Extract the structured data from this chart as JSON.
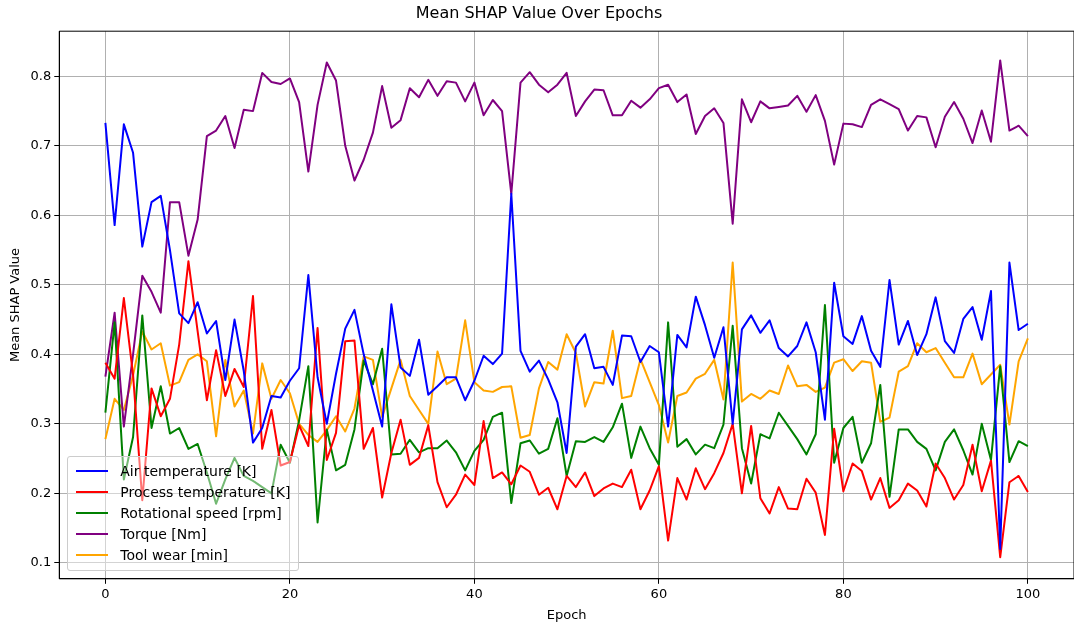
{
  "chart_data": {
    "type": "line",
    "title": "Mean SHAP Value Over Epochs",
    "xlabel": "Epoch",
    "ylabel": "Mean SHAP Value",
    "x": [
      0,
      1,
      2,
      3,
      4,
      5,
      6,
      7,
      8,
      9,
      10,
      11,
      12,
      13,
      14,
      15,
      16,
      17,
      18,
      19,
      20,
      21,
      22,
      23,
      24,
      25,
      26,
      27,
      28,
      29,
      30,
      31,
      32,
      33,
      34,
      35,
      36,
      37,
      38,
      39,
      40,
      41,
      42,
      43,
      44,
      45,
      46,
      47,
      48,
      49,
      50,
      51,
      52,
      53,
      54,
      55,
      56,
      57,
      58,
      59,
      60,
      61,
      62,
      63,
      64,
      65,
      66,
      67,
      68,
      69,
      70,
      71,
      72,
      73,
      74,
      75,
      76,
      77,
      78,
      79,
      80,
      81,
      82,
      83,
      84,
      85,
      86,
      87,
      88,
      89,
      90,
      91,
      92,
      93,
      94,
      95,
      96,
      97,
      98,
      99,
      100
    ],
    "xlim": [
      -5,
      105
    ],
    "xticks": [
      0,
      20,
      40,
      60,
      80,
      100
    ],
    "ylim": [
      0.077,
      0.865
    ],
    "yticks": [
      0.1,
      0.2,
      0.3,
      0.4,
      0.5,
      0.6,
      0.7,
      0.8
    ],
    "grid": true,
    "legend": "bottom left",
    "marker": "none",
    "line_style": "solid",
    "series": [
      {
        "name": "Air temperature [K]",
        "color": "#0000ff",
        "values": [
          0.733,
          0.586,
          0.731,
          0.69,
          0.555,
          0.619,
          0.628,
          0.55,
          0.459,
          0.445,
          0.475,
          0.43,
          0.448,
          0.363,
          0.45,
          0.376,
          0.273,
          0.294,
          0.34,
          0.338,
          0.362,
          0.38,
          0.514,
          0.367,
          0.3,
          0.372,
          0.437,
          0.464,
          0.4,
          0.348,
          0.296,
          0.472,
          0.381,
          0.369,
          0.421,
          0.342,
          0.354,
          0.367,
          0.367,
          0.334,
          0.362,
          0.398,
          0.386,
          0.401,
          0.631,
          0.405,
          0.375,
          0.391,
          0.364,
          0.331,
          0.258,
          0.411,
          0.429,
          0.38,
          0.382,
          0.356,
          0.427,
          0.426,
          0.389,
          0.412,
          0.403,
          0.296,
          0.428,
          0.41,
          0.483,
          0.442,
          0.395,
          0.439,
          0.3,
          0.436,
          0.456,
          0.431,
          0.449,
          0.409,
          0.397,
          0.412,
          0.446,
          0.403,
          0.306,
          0.503,
          0.426,
          0.415,
          0.455,
          0.405,
          0.382,
          0.507,
          0.414,
          0.448,
          0.399,
          0.429,
          0.482,
          0.419,
          0.402,
          0.451,
          0.468,
          0.421,
          0.491,
          0.12,
          0.532,
          0.435,
          0.444
        ]
      },
      {
        "name": "Process temperature [K]",
        "color": "#ff0000",
        "values": [
          0.388,
          0.365,
          0.481,
          0.37,
          0.19,
          0.351,
          0.311,
          0.336,
          0.414,
          0.534,
          0.433,
          0.334,
          0.406,
          0.34,
          0.379,
          0.353,
          0.484,
          0.264,
          0.32,
          0.24,
          0.245,
          0.298,
          0.268,
          0.438,
          0.248,
          0.287,
          0.419,
          0.42,
          0.264,
          0.294,
          0.194,
          0.258,
          0.306,
          0.241,
          0.251,
          0.298,
          0.216,
          0.18,
          0.198,
          0.227,
          0.212,
          0.304,
          0.222,
          0.23,
          0.213,
          0.24,
          0.231,
          0.198,
          0.208,
          0.177,
          0.225,
          0.209,
          0.23,
          0.196,
          0.207,
          0.214,
          0.209,
          0.234,
          0.177,
          0.204,
          0.239,
          0.132,
          0.222,
          0.191,
          0.236,
          0.206,
          0.229,
          0.258,
          0.3,
          0.2,
          0.297,
          0.193,
          0.171,
          0.209,
          0.178,
          0.177,
          0.221,
          0.201,
          0.14,
          0.293,
          0.203,
          0.243,
          0.232,
          0.191,
          0.222,
          0.179,
          0.19,
          0.214,
          0.204,
          0.181,
          0.243,
          0.222,
          0.191,
          0.212,
          0.27,
          0.203,
          0.247,
          0.108,
          0.216,
          0.225,
          0.202
        ]
      },
      {
        "name": "Rotational speed [rpm]",
        "color": "#008000",
        "values": [
          0.316,
          0.446,
          0.22,
          0.281,
          0.456,
          0.294,
          0.354,
          0.286,
          0.294,
          0.264,
          0.271,
          0.23,
          0.185,
          0.22,
          0.251,
          0.225,
          0.218,
          0.209,
          0.2,
          0.27,
          0.244,
          0.305,
          0.383,
          0.158,
          0.292,
          0.233,
          0.241,
          0.292,
          0.391,
          0.357,
          0.408,
          0.256,
          0.257,
          0.277,
          0.259,
          0.265,
          0.265,
          0.276,
          0.259,
          0.233,
          0.261,
          0.277,
          0.31,
          0.316,
          0.186,
          0.272,
          0.276,
          0.257,
          0.264,
          0.308,
          0.225,
          0.275,
          0.274,
          0.281,
          0.274,
          0.295,
          0.329,
          0.251,
          0.296,
          0.265,
          0.241,
          0.446,
          0.267,
          0.278,
          0.256,
          0.27,
          0.265,
          0.299,
          0.441,
          0.265,
          0.214,
          0.285,
          0.279,
          0.316,
          0.297,
          0.278,
          0.256,
          0.285,
          0.471,
          0.244,
          0.294,
          0.31,
          0.244,
          0.272,
          0.356,
          0.195,
          0.292,
          0.292,
          0.274,
          0.264,
          0.233,
          0.274,
          0.292,
          0.262,
          0.227,
          0.3,
          0.248,
          0.383,
          0.245,
          0.275,
          0.268
        ]
      },
      {
        "name": "Torque [Nm]",
        "color": "#800080",
        "values": [
          0.368,
          0.46,
          0.296,
          0.4,
          0.513,
          0.49,
          0.46,
          0.619,
          0.619,
          0.542,
          0.594,
          0.714,
          0.722,
          0.743,
          0.697,
          0.752,
          0.75,
          0.805,
          0.792,
          0.789,
          0.797,
          0.763,
          0.663,
          0.759,
          0.82,
          0.794,
          0.7,
          0.65,
          0.68,
          0.719,
          0.786,
          0.726,
          0.737,
          0.783,
          0.77,
          0.795,
          0.772,
          0.793,
          0.791,
          0.764,
          0.791,
          0.744,
          0.766,
          0.75,
          0.631,
          0.791,
          0.806,
          0.788,
          0.777,
          0.788,
          0.805,
          0.743,
          0.764,
          0.781,
          0.78,
          0.744,
          0.744,
          0.765,
          0.755,
          0.767,
          0.783,
          0.788,
          0.763,
          0.774,
          0.717,
          0.743,
          0.754,
          0.733,
          0.588,
          0.767,
          0.734,
          0.764,
          0.754,
          0.756,
          0.758,
          0.772,
          0.749,
          0.773,
          0.736,
          0.673,
          0.732,
          0.731,
          0.727,
          0.759,
          0.767,
          0.76,
          0.753,
          0.722,
          0.743,
          0.741,
          0.698,
          0.742,
          0.763,
          0.739,
          0.704,
          0.751,
          0.706,
          0.823,
          0.722,
          0.729,
          0.714
        ]
      },
      {
        "name": "Tool wear [min]",
        "color": "#ffa500",
        "values": [
          0.278,
          0.336,
          0.32,
          0.37,
          0.433,
          0.407,
          0.416,
          0.355,
          0.36,
          0.392,
          0.4,
          0.39,
          0.282,
          0.392,
          0.325,
          0.348,
          0.286,
          0.387,
          0.336,
          0.363,
          0.344,
          0.3,
          0.284,
          0.274,
          0.291,
          0.311,
          0.289,
          0.322,
          0.397,
          0.392,
          0.31,
          0.351,
          0.392,
          0.34,
          0.32,
          0.3,
          0.404,
          0.357,
          0.365,
          0.449,
          0.36,
          0.348,
          0.346,
          0.353,
          0.354,
          0.28,
          0.284,
          0.351,
          0.389,
          0.378,
          0.429,
          0.402,
          0.325,
          0.36,
          0.358,
          0.434,
          0.337,
          0.34,
          0.393,
          0.36,
          0.327,
          0.273,
          0.34,
          0.345,
          0.365,
          0.372,
          0.392,
          0.335,
          0.532,
          0.332,
          0.343,
          0.336,
          0.348,
          0.343,
          0.384,
          0.354,
          0.356,
          0.346,
          0.352,
          0.388,
          0.393,
          0.376,
          0.39,
          0.388,
          0.303,
          0.309,
          0.375,
          0.383,
          0.416,
          0.403,
          0.409,
          0.388,
          0.367,
          0.367,
          0.401,
          0.357,
          0.371,
          0.385,
          0.299,
          0.39,
          0.423
        ]
      }
    ]
  }
}
